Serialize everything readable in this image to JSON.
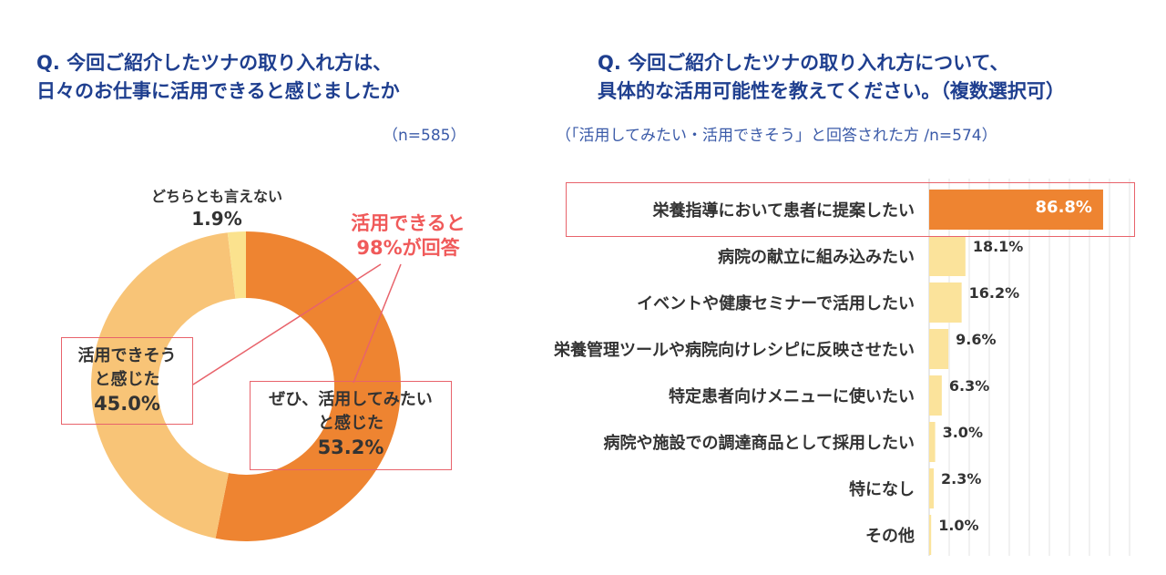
{
  "chart_data": [
    {
      "type": "pie",
      "variant": "donut",
      "title_lines": [
        "Q. 今回ご紹介したツナの取り入れ方は、",
        "日々のお仕事に活用できると感じましたか"
      ],
      "sample": "（n=585）",
      "slices": [
        {
          "label_lines": [
            "ぜひ、活用してみたい",
            "と感じた"
          ],
          "value": 53.2,
          "value_text": "53.2%",
          "color": "#ee8431"
        },
        {
          "label_lines": [
            "活用できそう",
            "と感じた"
          ],
          "value": 45.0,
          "value_text": "45.0%",
          "color": "#f8c477"
        },
        {
          "label_lines": [
            "どちらとも言えない"
          ],
          "value": 1.9,
          "value_text": "1.9%",
          "color": "#fbe28e"
        }
      ],
      "callout_lines": [
        "活用できると",
        "98%が回答"
      ]
    },
    {
      "type": "bar",
      "orientation": "horizontal",
      "title_lines": [
        "Q. 今回ご紹介したツナの取り入れ方について、",
        "具体的な活用可能性を教えてください。（複数選択可）"
      ],
      "sample": "（「活用してみたい・活用できそう」と回答された方 /n=574）",
      "categories": [
        "栄養指導において患者に提案したい",
        "病院の献立に組み込みたい",
        "イベントや健康セミナーで活用したい",
        "栄養管理ツールや病院向けレシピに反映させたい",
        "特定患者向けメニューに使いたい",
        "病院や施設での調達商品として採用したい",
        "特になし",
        "その他"
      ],
      "values": [
        86.8,
        18.1,
        16.2,
        9.6,
        6.3,
        3.0,
        2.3,
        1.0
      ],
      "value_texts": [
        "86.8%",
        "18.1%",
        "16.2%",
        "9.6%",
        "6.3%",
        "3.0%",
        "2.3%",
        "1.0%"
      ],
      "xlim": [
        0,
        100
      ],
      "grid": true,
      "colors": {
        "highlight": "#ee8431",
        "normal": "#fbe39b"
      }
    }
  ]
}
